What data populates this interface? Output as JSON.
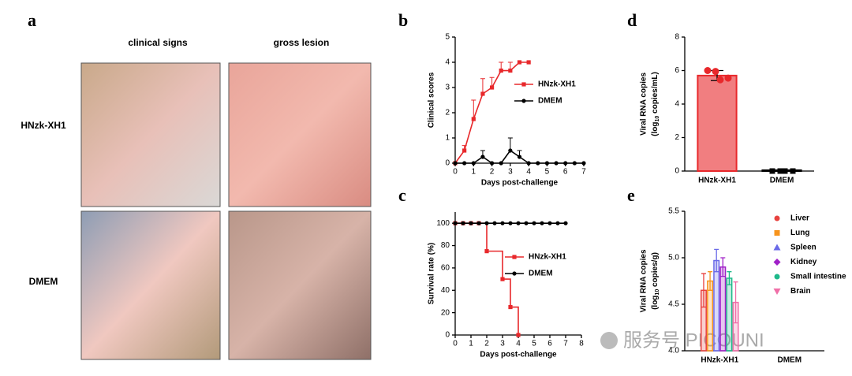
{
  "panel_a": {
    "letter": "a",
    "columns": [
      "clinical signs",
      "gross lesion"
    ],
    "rows": [
      "HNzk-XH1",
      "DMEM"
    ]
  },
  "watermark": "服务号 PICOUNI",
  "chart_data": [
    {
      "type": "line",
      "letter": "b",
      "xlabel": "Days post-challenge",
      "ylabel": "Clinical scores",
      "xlim": [
        0,
        7
      ],
      "xticks": [
        0,
        1,
        2,
        3,
        4,
        5,
        6,
        7
      ],
      "ylim": [
        0,
        5
      ],
      "yticks": [
        0,
        1,
        2,
        3,
        4,
        5
      ],
      "series": [
        {
          "name": "HNzk-XH1",
          "color": "#e8282b",
          "marker": "square",
          "x": [
            0,
            0.5,
            1,
            1.5,
            2,
            2.5,
            3,
            3.5,
            4
          ],
          "values": [
            0,
            0.5,
            1.75,
            2.75,
            3,
            3.67,
            3.67,
            4,
            4
          ],
          "errors": [
            0,
            0.2,
            0.75,
            0.6,
            0.4,
            0.33,
            0.33,
            0,
            0
          ]
        },
        {
          "name": "DMEM",
          "color": "#000000",
          "marker": "circle",
          "x": [
            0,
            0.5,
            1,
            1.5,
            2,
            2.5,
            3,
            3.5,
            4,
            4.5,
            5,
            5.5,
            6,
            6.5,
            7
          ],
          "values": [
            0,
            0,
            0,
            0.25,
            0,
            0,
            0.5,
            0.25,
            0,
            0,
            0,
            0,
            0,
            0,
            0
          ],
          "errors": [
            0,
            0,
            0,
            0.25,
            0,
            0,
            0.5,
            0.25,
            0,
            0,
            0,
            0,
            0,
            0,
            0
          ]
        }
      ]
    },
    {
      "type": "line",
      "step": true,
      "letter": "c",
      "xlabel": "Days post-challenge",
      "ylabel": "Survival rate (%)",
      "xlim": [
        0,
        8
      ],
      "xticks": [
        0,
        1,
        2,
        3,
        4,
        5,
        6,
        7,
        8
      ],
      "ylim": [
        0,
        110
      ],
      "yticks": [
        0,
        20,
        40,
        60,
        80,
        100
      ],
      "series": [
        {
          "name": "HNzk-XH1",
          "color": "#e8282b",
          "marker": "square",
          "x": [
            0,
            0.5,
            1,
            1.5,
            2,
            3,
            3.5,
            4
          ],
          "values": [
            100,
            100,
            100,
            100,
            75,
            50,
            25,
            0
          ]
        },
        {
          "name": "DMEM",
          "color": "#000000",
          "marker": "circle",
          "x": [
            0,
            0.5,
            1,
            1.5,
            2,
            2.5,
            3,
            3.5,
            4,
            4.5,
            5,
            5.5,
            6,
            6.5,
            7
          ],
          "values": [
            100,
            100,
            100,
            100,
            100,
            100,
            100,
            100,
            100,
            100,
            100,
            100,
            100,
            100,
            100
          ]
        }
      ]
    },
    {
      "type": "bar",
      "letter": "d",
      "ylabel": "Viral RNA copies",
      "ylabel_sub": [
        "(log",
        "10",
        " copies/mL)"
      ],
      "categories": [
        "HNzk-XH1",
        "DMEM"
      ],
      "values": [
        5.7,
        0.05
      ],
      "errors": [
        0.3,
        0
      ],
      "colors": [
        "#e8282b",
        "#000000"
      ],
      "points": [
        [
          6.0,
          5.95,
          5.45,
          5.55
        ],
        [
          0,
          0,
          0,
          0
        ]
      ],
      "ylim": [
        0,
        8
      ],
      "yticks": [
        0,
        2,
        4,
        6,
        8
      ]
    },
    {
      "type": "bar",
      "letter": "e",
      "ylabel": "Viral RNA copies",
      "ylabel_sub": [
        "(log",
        "10",
        " copies/g)"
      ],
      "categories": [
        "HNzk-XH1",
        "DMEM"
      ],
      "ylim": [
        4.0,
        5.5
      ],
      "yticks": [
        {
          "value": 4.0,
          "label": "4.0"
        },
        4.5,
        {
          "value": 5.0,
          "label": "5.0"
        },
        5.5
      ],
      "series": [
        {
          "name": "Liver",
          "color": "#e8423f",
          "marker": "circle",
          "values": [
            4.65,
            null
          ],
          "errors": [
            0.18,
            null
          ]
        },
        {
          "name": "Lung",
          "color": "#f7941d",
          "marker": "square",
          "values": [
            4.75,
            null
          ],
          "errors": [
            0.1,
            null
          ]
        },
        {
          "name": "Spleen",
          "color": "#6a6ae8",
          "marker": "triangle",
          "values": [
            4.97,
            null
          ],
          "errors": [
            0.12,
            null
          ]
        },
        {
          "name": "Kidney",
          "color": "#a020c8",
          "marker": "diamond",
          "values": [
            4.9,
            null
          ],
          "errors": [
            0.1,
            null
          ]
        },
        {
          "name": "Small intestine",
          "color": "#1fb98a",
          "marker": "circle",
          "values": [
            4.78,
            null
          ],
          "errors": [
            0.07,
            null
          ]
        },
        {
          "name": "Brain",
          "color": "#f06fa8",
          "marker": "triangle-down",
          "values": [
            4.52,
            null
          ],
          "errors": [
            0.22,
            null
          ]
        }
      ]
    }
  ]
}
